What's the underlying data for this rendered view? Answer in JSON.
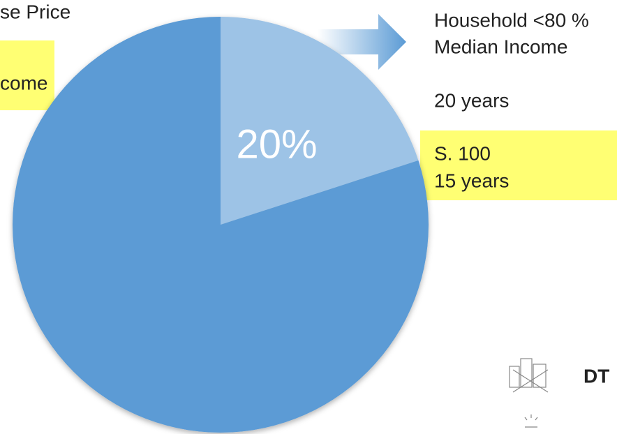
{
  "chart_data": {
    "type": "pie",
    "values": [
      20,
      80
    ],
    "value_labels": [
      "20%",
      null
    ],
    "colors": [
      "#9dc3e6",
      "#5b9bd5"
    ]
  },
  "annotations": {
    "left_top": "se Price",
    "left_box": "come",
    "right_line1": "Household <80 %",
    "right_line2": "Median Income",
    "right_line3": "20 years",
    "right_box_line1": "S. 100",
    "right_box_line2": "15 years",
    "logo": "DT"
  }
}
